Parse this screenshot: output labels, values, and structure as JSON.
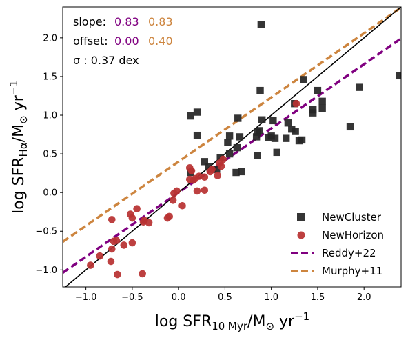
{
  "chart_data": {
    "type": "scatter",
    "xlabel": "log SFR10 Myr/M⊙ yr−1",
    "ylabel": "log SFRHα/M⊙ yr−1",
    "xlim": [
      -1.25,
      2.4
    ],
    "ylim": [
      -1.22,
      2.4
    ],
    "xticks": [
      -1.0,
      -0.5,
      0.0,
      0.5,
      1.0,
      1.5,
      2.0
    ],
    "yticks": [
      -1.0,
      -0.5,
      0.0,
      0.5,
      1.0,
      1.5,
      2.0
    ],
    "xtick_labels": [
      "−1.0",
      "−0.5",
      "0.0",
      "0.5",
      "1.0",
      "1.5",
      "2.0"
    ],
    "ytick_labels": [
      "−1.0",
      "−0.5",
      "0.0",
      "0.5",
      "1.0",
      "1.5",
      "2.0"
    ],
    "grid": false,
    "legend_position": "bottom-right",
    "annotations": {
      "slope_label": "slope:",
      "slope_values": [
        "0.83",
        "0.83"
      ],
      "offset_label": "offset:",
      "offset_values": [
        "0.00",
        "0.40"
      ],
      "sigma_label": "σ : 0.37 dex"
    },
    "colors": {
      "newcluster": "#262626",
      "newhorizon": "#b83232",
      "reddy": "#800080",
      "murphy": "#cd853f",
      "identity": "#000000"
    },
    "series": [
      {
        "name": "NewCluster",
        "marker": "square",
        "points": [
          [
            0.89,
            2.17
          ],
          [
            2.38,
            1.51
          ],
          [
            1.35,
            1.46
          ],
          [
            1.5,
            1.32
          ],
          [
            0.88,
            1.32
          ],
          [
            1.95,
            1.36
          ],
          [
            1.55,
            1.18
          ],
          [
            1.55,
            1.09
          ],
          [
            1.45,
            1.07
          ],
          [
            1.45,
            1.03
          ],
          [
            1.25,
            1.15
          ],
          [
            0.2,
            1.04
          ],
          [
            0.13,
            0.99
          ],
          [
            0.64,
            0.96
          ],
          [
            0.9,
            0.94
          ],
          [
            1.02,
            0.93
          ],
          [
            1.18,
            0.9
          ],
          [
            1.85,
            0.85
          ],
          [
            1.22,
            0.82
          ],
          [
            1.26,
            0.79
          ],
          [
            0.87,
            0.8
          ],
          [
            0.85,
            0.78
          ],
          [
            0.2,
            0.74
          ],
          [
            0.55,
            0.73
          ],
          [
            0.66,
            0.72
          ],
          [
            1.0,
            0.73
          ],
          [
            1.04,
            0.7
          ],
          [
            0.97,
            0.71
          ],
          [
            1.16,
            0.7
          ],
          [
            0.84,
            0.72
          ],
          [
            1.33,
            0.68
          ],
          [
            1.3,
            0.67
          ],
          [
            0.53,
            0.65
          ],
          [
            0.63,
            0.58
          ],
          [
            1.06,
            0.52
          ],
          [
            0.85,
            0.48
          ],
          [
            0.55,
            0.5
          ],
          [
            0.45,
            0.45
          ],
          [
            0.28,
            0.4
          ],
          [
            0.32,
            0.33
          ],
          [
            0.41,
            0.3
          ],
          [
            0.37,
            0.3
          ],
          [
            0.62,
            0.26
          ],
          [
            0.68,
            0.27
          ],
          [
            0.13,
            0.26
          ]
        ]
      },
      {
        "name": "NewHorizon",
        "marker": "circle",
        "points": [
          [
            -0.72,
            -0.35
          ],
          [
            -0.45,
            -0.21
          ],
          [
            -0.52,
            -0.28
          ],
          [
            -0.5,
            -0.33
          ],
          [
            -0.37,
            -0.36
          ],
          [
            -0.32,
            -0.39
          ],
          [
            -0.38,
            -0.38
          ],
          [
            -0.12,
            -0.33
          ],
          [
            -0.1,
            -0.31
          ],
          [
            -0.06,
            -0.1
          ],
          [
            0.04,
            -0.17
          ],
          [
            -0.05,
            -0.01
          ],
          [
            -0.02,
            0.02
          ],
          [
            0.12,
            0.32
          ],
          [
            0.14,
            0.28
          ],
          [
            0.12,
            0.17
          ],
          [
            0.16,
            0.16
          ],
          [
            0.18,
            0.18
          ],
          [
            0.22,
            0.21
          ],
          [
            0.28,
            0.2
          ],
          [
            0.2,
            0.02
          ],
          [
            0.28,
            0.03
          ],
          [
            0.34,
            0.27
          ],
          [
            0.36,
            0.3
          ],
          [
            0.42,
            0.22
          ],
          [
            0.46,
            0.34
          ],
          [
            0.48,
            0.43
          ],
          [
            0.44,
            0.38
          ],
          [
            1.27,
            1.15
          ],
          [
            -0.7,
            -0.63
          ],
          [
            -0.72,
            -0.73
          ],
          [
            -0.67,
            -0.62
          ],
          [
            -0.59,
            -0.68
          ],
          [
            -0.5,
            -0.65
          ],
          [
            -0.73,
            -0.89
          ],
          [
            -0.85,
            -0.82
          ],
          [
            -0.95,
            -0.94
          ],
          [
            -0.66,
            -1.06
          ],
          [
            -0.39,
            -1.05
          ]
        ]
      }
    ],
    "lines": [
      {
        "name": "Reddy+22",
        "slope": 0.83,
        "offset": 0.0,
        "style": "dashed"
      },
      {
        "name": "Murphy+11",
        "slope": 0.83,
        "offset": 0.4,
        "style": "dashed"
      },
      {
        "name": "",
        "slope": 1.0,
        "offset": 0.0,
        "style": "solid"
      }
    ]
  }
}
